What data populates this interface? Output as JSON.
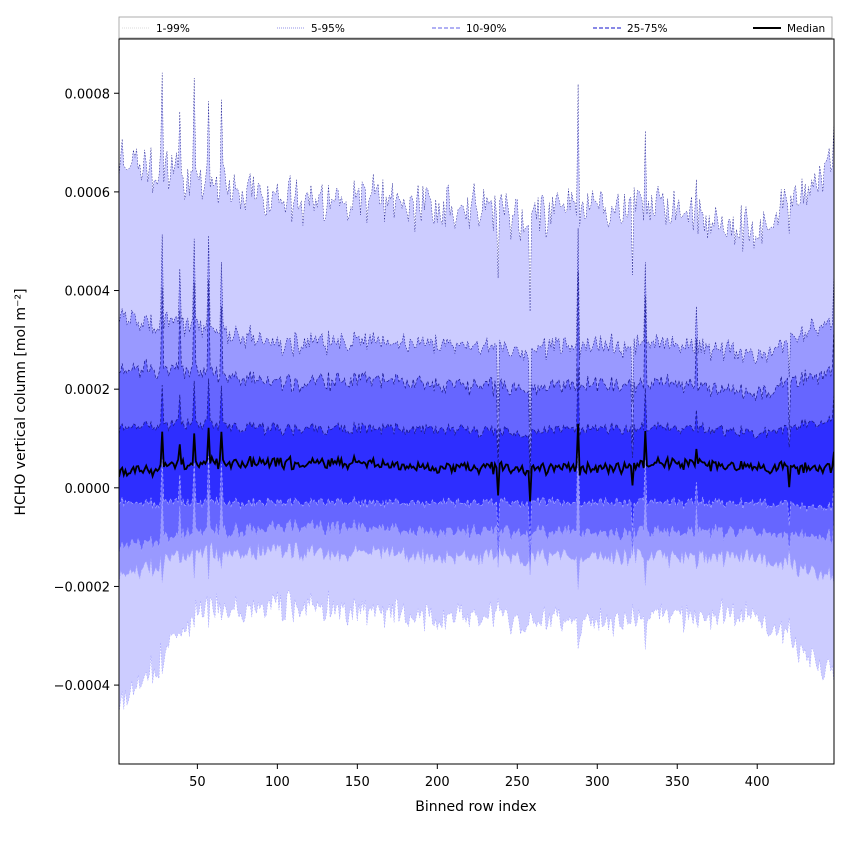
{
  "chart_data": {
    "type": "area",
    "xlabel": "Binned row index",
    "ylabel": "HCHO vertical column [mol m⁻²]",
    "xlim": [
      1,
      448
    ],
    "ylim": [
      -0.00056,
      0.00091
    ],
    "xticks": [
      50,
      100,
      150,
      200,
      250,
      300,
      350,
      400
    ],
    "xtick_labels": [
      "50",
      "100",
      "150",
      "200",
      "250",
      "300",
      "350",
      "400"
    ],
    "yticks": [
      -0.0004,
      -0.0002,
      0.0,
      0.0002,
      0.0004,
      0.0006,
      0.0008
    ],
    "ytick_labels": [
      "−0.0004",
      "−0.0002",
      "0.0000",
      "0.0002",
      "0.0004",
      "0.0006",
      "0.0008"
    ],
    "grid": false,
    "legend_position": "top",
    "legend": [
      {
        "label": "1-99%",
        "color": "#d0d0d0",
        "style": "dotted"
      },
      {
        "label": "5-95%",
        "color": "#8080ff",
        "style": "dotted"
      },
      {
        "label": "10-90%",
        "color": "#7070f0",
        "style": "dashed"
      },
      {
        "label": "25-75%",
        "color": "#4a4ae0",
        "style": "dashed"
      },
      {
        "label": "Median",
        "color": "#000000",
        "style": "solid"
      }
    ],
    "bands": [
      {
        "name": "1-99%",
        "fill": "#ccccff",
        "lower_mean": -0.00026,
        "upper_mean": 0.0006
      },
      {
        "name": "5-95%",
        "fill": "#9999ff",
        "lower_mean": -0.00014,
        "upper_mean": 0.0003
      },
      {
        "name": "10-90%",
        "fill": "#6666ff",
        "lower_mean": -9e-05,
        "upper_mean": 0.00022
      },
      {
        "name": "25-75%",
        "fill": "#2e2eff",
        "lower_mean": -3e-05,
        "upper_mean": 0.00012
      }
    ],
    "median": {
      "name": "Median",
      "color": "#000000",
      "mean": 4e-05
    },
    "series_summary": [
      {
        "x": [
          1,
          50,
          100,
          150,
          200,
          250,
          300,
          350,
          400,
          448
        ],
        "p99": [
          0.00066,
          0.00063,
          0.00058,
          0.00059,
          0.00057,
          0.00055,
          0.00057,
          0.00056,
          0.00051,
          0.00066
        ],
        "p95": [
          0.00034,
          0.00033,
          0.00029,
          0.0003,
          0.00029,
          0.00028,
          0.00029,
          0.00029,
          0.00027,
          0.00034
        ],
        "p90": [
          0.00024,
          0.00024,
          0.00021,
          0.00022,
          0.00021,
          0.0002,
          0.00021,
          0.00021,
          0.00019,
          0.00024
        ],
        "p75": [
          0.00012,
          0.00013,
          0.00012,
          0.00012,
          0.00012,
          0.00011,
          0.00012,
          0.00012,
          0.00011,
          0.00014
        ],
        "p50": [
          3e-05,
          5e-05,
          5e-05,
          5e-05,
          4e-05,
          4e-05,
          4e-05,
          5e-05,
          4e-05,
          4e-05
        ],
        "p25": [
          -3e-05,
          -3e-05,
          -3e-05,
          -3e-05,
          -3e-05,
          -3e-05,
          -3e-05,
          -3e-05,
          -3e-05,
          -4e-05
        ],
        "p10": [
          -0.00012,
          -9e-05,
          -8e-05,
          -8e-05,
          -9e-05,
          -9e-05,
          -9e-05,
          -9e-05,
          -9e-05,
          -0.0001
        ],
        "p5": [
          -0.00018,
          -0.00013,
          -0.00013,
          -0.00013,
          -0.00014,
          -0.00014,
          -0.00014,
          -0.00014,
          -0.00014,
          -0.00018
        ],
        "p1": [
          -0.00045,
          -0.00025,
          -0.00024,
          -0.00025,
          -0.00026,
          -0.00027,
          -0.00027,
          -0.00026,
          -0.00026,
          -0.00038
        ]
      }
    ]
  }
}
